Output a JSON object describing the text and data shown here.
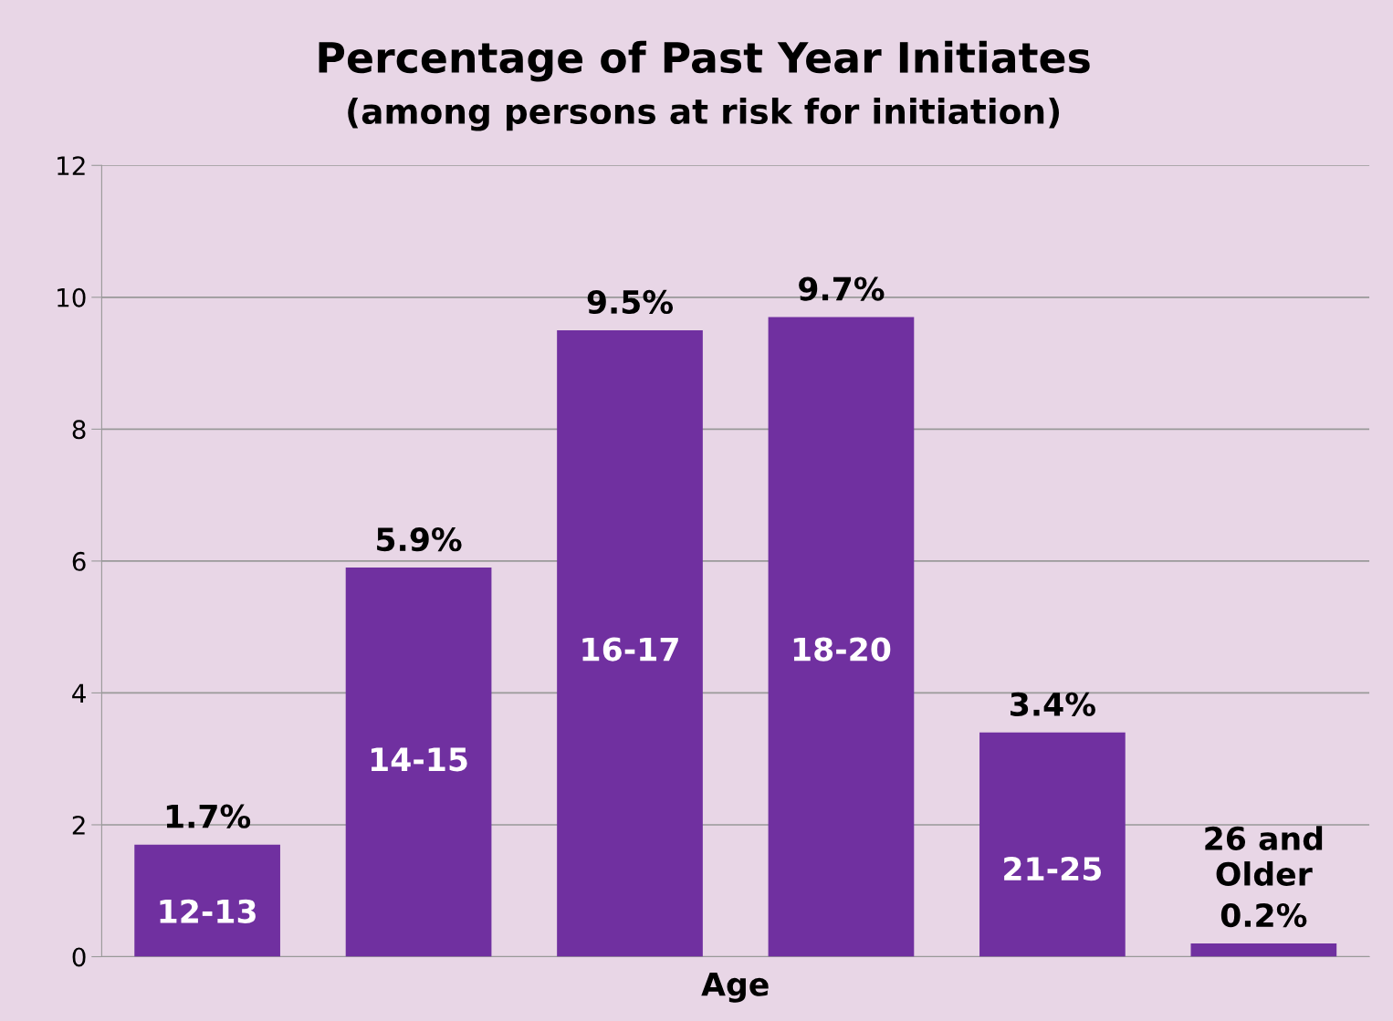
{
  "chart_data": {
    "type": "bar",
    "title": "Percentage of Past Year Initiates",
    "subtitle": "(among persons at risk for initiation)",
    "xlabel": "Age",
    "categories": [
      "12-13",
      "14-15",
      "16-17",
      "18-20",
      "21-25",
      "26 and\nOlder"
    ],
    "values": [
      1.7,
      5.9,
      9.5,
      9.7,
      3.4,
      0.2
    ],
    "value_labels": [
      "1.7%",
      "5.9%",
      "9.5%",
      "9.7%",
      "3.4%",
      "0.2%"
    ],
    "color": "#7030a0",
    "ylim": [
      0,
      12
    ],
    "yticks": [
      0,
      2,
      4,
      6,
      8,
      10,
      12
    ],
    "grid": "y",
    "legend": false
  }
}
